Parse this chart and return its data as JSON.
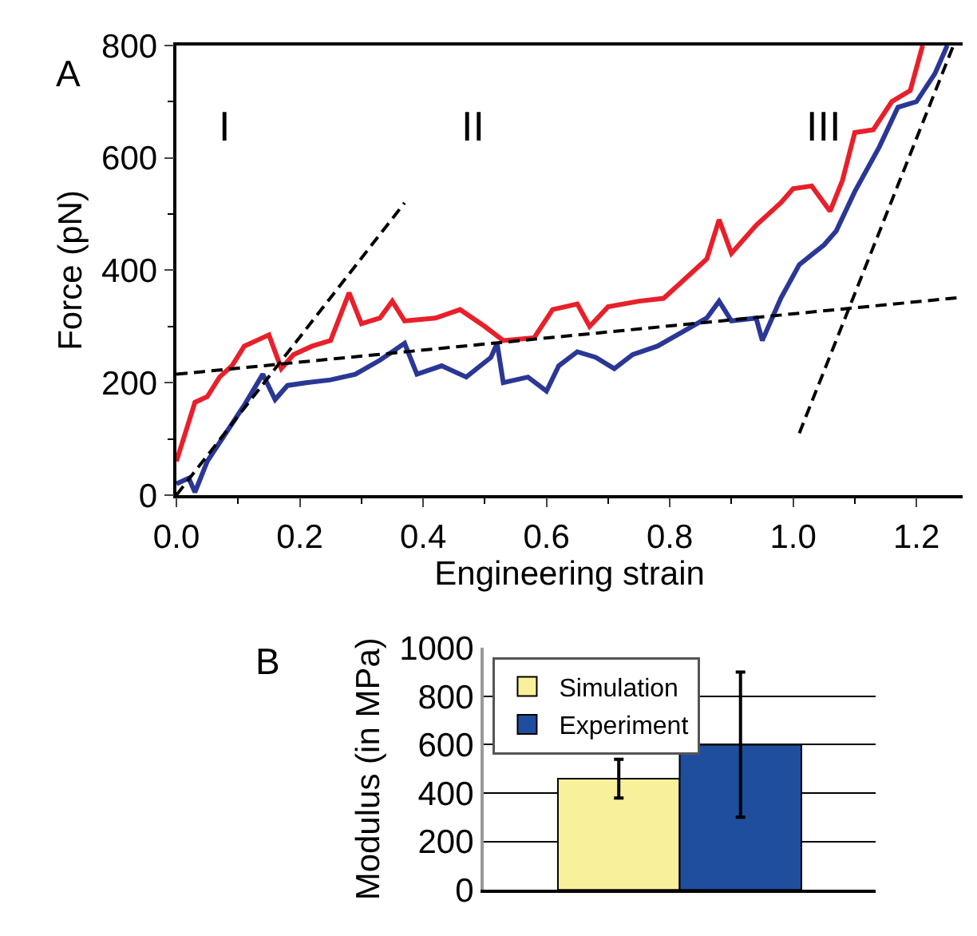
{
  "chart_data": [
    {
      "type": "line",
      "xlabel": "Engineering strain",
      "ylabel": "Force (pN)",
      "xlim": [
        0,
        1.275
      ],
      "ylim": [
        0,
        800
      ],
      "xticks": [
        {
          "value": 0,
          "label": "0.0"
        },
        0.2,
        0.4,
        0.6,
        0.8,
        {
          "value": 1,
          "label": "1.0"
        },
        1.2
      ],
      "yticks": [
        0,
        200,
        400,
        600,
        800
      ],
      "grid": false,
      "legend": false,
      "annotations": [
        "A",
        "I",
        "II",
        "III"
      ],
      "series": [
        {
          "color": "#e8202a",
          "line_style": "solid",
          "x": [
            0.0,
            0.02,
            0.03,
            0.05,
            0.07,
            0.09,
            0.11,
            0.13,
            0.15,
            0.17,
            0.19,
            0.22,
            0.25,
            0.28,
            0.3,
            0.33,
            0.35,
            0.37,
            0.42,
            0.46,
            0.5,
            0.53,
            0.58,
            0.61,
            0.65,
            0.67,
            0.7,
            0.75,
            0.79,
            0.82,
            0.86,
            0.88,
            0.9,
            0.94,
            0.98,
            1.0,
            1.03,
            1.06,
            1.08,
            1.1,
            1.13,
            1.16,
            1.19,
            1.21
          ],
          "values": [
            60,
            130,
            165,
            175,
            210,
            230,
            265,
            275,
            285,
            225,
            250,
            265,
            275,
            360,
            305,
            315,
            345,
            310,
            315,
            330,
            300,
            275,
            280,
            330,
            340,
            300,
            335,
            345,
            350,
            380,
            420,
            490,
            430,
            480,
            520,
            545,
            550,
            505,
            560,
            645,
            650,
            700,
            720,
            800
          ]
        },
        {
          "color": "#2b3795",
          "line_style": "solid",
          "x": [
            0.0,
            0.02,
            0.03,
            0.05,
            0.08,
            0.11,
            0.14,
            0.16,
            0.18,
            0.21,
            0.25,
            0.29,
            0.33,
            0.37,
            0.39,
            0.43,
            0.47,
            0.51,
            0.52,
            0.53,
            0.57,
            0.6,
            0.62,
            0.65,
            0.68,
            0.71,
            0.74,
            0.78,
            0.82,
            0.86,
            0.88,
            0.9,
            0.94,
            0.95,
            0.98,
            1.01,
            1.05,
            1.07,
            1.1,
            1.14,
            1.17,
            1.2,
            1.23,
            1.25
          ],
          "values": [
            20,
            30,
            5,
            60,
            110,
            160,
            215,
            170,
            195,
            200,
            205,
            215,
            240,
            270,
            215,
            230,
            210,
            245,
            270,
            200,
            210,
            185,
            230,
            255,
            245,
            225,
            250,
            265,
            290,
            315,
            345,
            310,
            315,
            275,
            350,
            410,
            445,
            470,
            540,
            620,
            690,
            700,
            750,
            800
          ]
        },
        {
          "color": "#000000",
          "line_style": "dashed",
          "x": [
            0,
            0.37
          ],
          "values": [
            0,
            520
          ]
        },
        {
          "color": "#000000",
          "line_style": "dashed",
          "x": [
            0,
            1.275
          ],
          "values": [
            215,
            352
          ]
        },
        {
          "color": "#000000",
          "line_style": "dashed",
          "x": [
            1.01,
            1.26
          ],
          "values": [
            110,
            800
          ]
        }
      ]
    },
    {
      "type": "bar",
      "ylabel": "Modulus (in MPa)",
      "categories": [
        null
      ],
      "ylim": [
        0,
        1000
      ],
      "yticks": [
        0,
        200,
        400,
        600,
        800,
        1000
      ],
      "grid": "y",
      "legend": "top left",
      "tick_labels": "y",
      "annotations": [
        "B"
      ],
      "series": [
        {
          "name": "Simulation",
          "color": "#f9f09b",
          "values": [
            460
          ],
          "errors": [
            [
              380,
              540
            ]
          ]
        },
        {
          "name": "Experiment",
          "color": "#1f4e9f",
          "values": [
            600
          ],
          "errors": [
            [
              300,
              900
            ]
          ]
        }
      ]
    }
  ]
}
